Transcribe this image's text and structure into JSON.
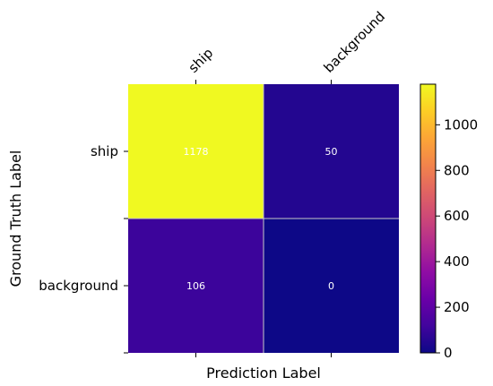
{
  "chart_data": {
    "type": "heatmap",
    "title": "",
    "xlabel": "Prediction Label",
    "ylabel": "Ground Truth Label",
    "x_categories": [
      "ship",
      "background"
    ],
    "y_categories": [
      "ship",
      "background"
    ],
    "values": [
      [
        1178,
        50
      ],
      [
        106,
        0
      ]
    ],
    "colormap": "plasma",
    "colorbar": {
      "min": 0,
      "max": 1178,
      "ticks": [
        0,
        200,
        400,
        600,
        800,
        1000
      ]
    },
    "grid": true,
    "grid_color": "#c8c8c8"
  }
}
